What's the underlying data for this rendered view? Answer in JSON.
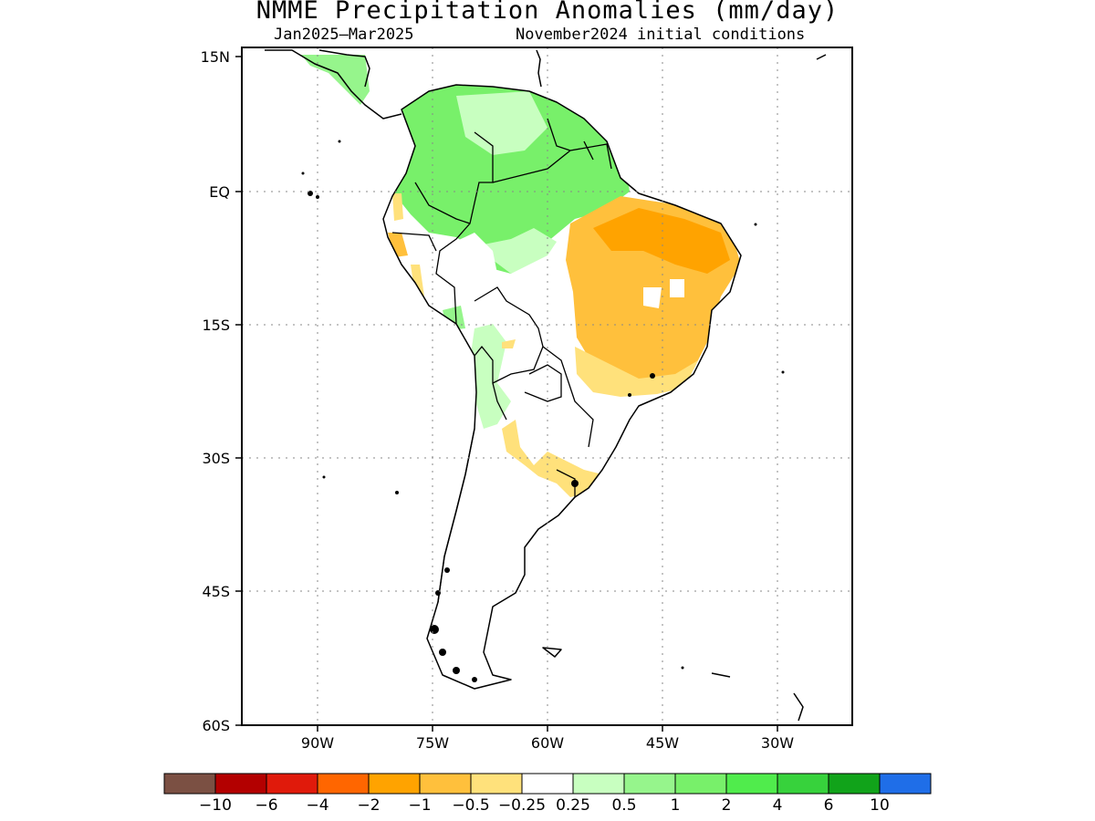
{
  "title": "NMME Precipitation Anomalies (mm/day)",
  "subtitle_period": "Jan2025–Mar2025",
  "subtitle_ic": "November2024 initial conditions",
  "lat_ticks": [
    "15N",
    "EQ",
    "15S",
    "30S",
    "45S",
    "60S"
  ],
  "lon_ticks": [
    "90W",
    "75W",
    "60W",
    "45W",
    "30W"
  ],
  "colorbar": {
    "colors": [
      "#7b5043",
      "#b30000",
      "#e01a0b",
      "#ff6600",
      "#ffa300",
      "#ffc03c",
      "#ffe17b",
      "#ffffff",
      "#c8ffc0",
      "#96f58c",
      "#78f06a",
      "#50ec4c",
      "#37d23c",
      "#11a31a",
      "#1f6ee8"
    ],
    "labels": [
      "−10",
      "−6",
      "−4",
      "−2",
      "−1",
      "−0.5",
      "−0.25",
      "0.25",
      "0.5",
      "1",
      "2",
      "4",
      "6",
      "10"
    ]
  },
  "regions": [
    {
      "name": "north-south-america-wet",
      "category": "1-2",
      "color": "#78f06a"
    },
    {
      "name": "guiana-highlands",
      "category": "0.25-0.5",
      "color": "#c8ffc0"
    },
    {
      "name": "central-america-wet",
      "category": "0.5-1",
      "color": "#96f58c"
    },
    {
      "name": "northeast-brazil-dry",
      "category": "-1 to -0.5",
      "color": "#ffc03c"
    },
    {
      "name": "northeast-brazil-core-dry",
      "category": "-2 to -1",
      "color": "#ffa300"
    },
    {
      "name": "east-brazil-margin-dry",
      "category": "-0.5 to -0.25",
      "color": "#ffe17b"
    },
    {
      "name": "southern-brazil-uruguay-dry",
      "category": "-0.5 to -0.25",
      "color": "#ffe17b"
    },
    {
      "name": "andes-wet",
      "category": "0.25-0.5",
      "color": "#c8ffc0"
    },
    {
      "name": "peru-coast-dry",
      "category": "-1 to -0.25",
      "color": "#ffc03c"
    }
  ]
}
